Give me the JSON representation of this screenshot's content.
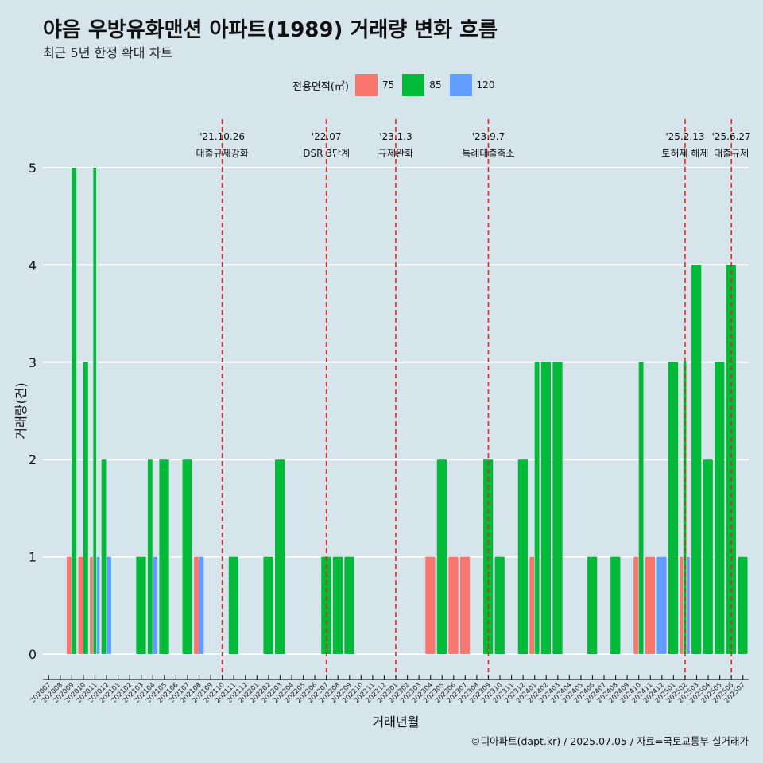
{
  "title": "야음 우방유화맨션 아파트(1989) 거래량 변화 흐름",
  "subtitle": "최근 5년 한정 확대 차트",
  "caption": "©디아파트(dapt.kr) / 2025.07.05 / 자료=국토교통부 실거래가",
  "colors": {
    "background": "#d6e4ec",
    "vline": "#e8261c",
    "grid": "#ffffff",
    "axis": "#222222"
  },
  "chart_data": {
    "type": "bar",
    "xlabel": "거래년월",
    "ylabel": "거래량(건)",
    "ylim": [
      0,
      5
    ],
    "yticks": [
      0,
      1,
      2,
      3,
      4,
      5
    ],
    "grid": true,
    "legend_position": "top",
    "legend": {
      "title": "전용면적(㎡)",
      "entries": [
        {
          "name": "75",
          "color": "#f8766d"
        },
        {
          "name": "85",
          "color": "#00ba38"
        },
        {
          "name": "120",
          "color": "#619cff"
        }
      ]
    },
    "categories": [
      "202007",
      "202008",
      "202009",
      "202010",
      "202011",
      "202012",
      "202101",
      "202102",
      "202103",
      "202104",
      "202105",
      "202106",
      "202107",
      "202108",
      "202109",
      "202110",
      "202111",
      "202112",
      "202201",
      "202202",
      "202203",
      "202204",
      "202205",
      "202206",
      "202207",
      "202208",
      "202209",
      "202210",
      "202211",
      "202212",
      "202301",
      "202302",
      "202303",
      "202304",
      "202305",
      "202306",
      "202307",
      "202308",
      "202309",
      "202310",
      "202311",
      "202312",
      "202401",
      "202402",
      "202403",
      "202404",
      "202405",
      "202406",
      "202407",
      "202408",
      "202409",
      "202410",
      "202411",
      "202412",
      "202501",
      "202502",
      "202503",
      "202504",
      "202505",
      "202506",
      "202507"
    ],
    "series": [
      {
        "name": "75",
        "values": [
          0,
          0,
          1,
          1,
          1,
          0,
          0,
          0,
          0,
          0,
          0,
          0,
          0,
          1,
          0,
          0,
          0,
          0,
          0,
          0,
          0,
          0,
          0,
          0,
          0,
          0,
          0,
          0,
          0,
          0,
          0,
          0,
          0,
          1,
          0,
          1,
          1,
          0,
          0,
          0,
          0,
          0,
          1,
          0,
          0,
          0,
          0,
          0,
          0,
          0,
          0,
          1,
          1,
          0,
          0,
          1,
          0,
          0,
          0,
          0,
          0
        ]
      },
      {
        "name": "85",
        "values": [
          0,
          0,
          5,
          3,
          5,
          2,
          0,
          0,
          1,
          2,
          2,
          0,
          2,
          0,
          0,
          0,
          1,
          0,
          0,
          1,
          2,
          0,
          0,
          0,
          1,
          1,
          1,
          0,
          0,
          0,
          0,
          0,
          0,
          0,
          2,
          0,
          0,
          0,
          2,
          1,
          0,
          2,
          3,
          3,
          3,
          0,
          0,
          1,
          0,
          1,
          0,
          3,
          0,
          0,
          3,
          3,
          4,
          2,
          3,
          4,
          1
        ]
      },
      {
        "name": "120",
        "values": [
          0,
          0,
          0,
          0,
          1,
          1,
          0,
          0,
          0,
          1,
          0,
          0,
          0,
          1,
          0,
          0,
          0,
          0,
          0,
          0,
          0,
          0,
          0,
          0,
          0,
          0,
          0,
          0,
          0,
          0,
          0,
          0,
          0,
          0,
          0,
          0,
          0,
          0,
          0,
          0,
          0,
          0,
          0,
          0,
          0,
          0,
          0,
          0,
          0,
          0,
          0,
          0,
          0,
          1,
          0,
          1,
          0,
          0,
          0,
          0,
          0
        ]
      }
    ],
    "annotations": [
      {
        "at": "202110",
        "date": "'21.10.26",
        "label": "대출규제강화"
      },
      {
        "at": "202207",
        "date": "'22.07",
        "label": "DSR 3단계"
      },
      {
        "at": "202301",
        "date": "'23.1.3",
        "label": "규제완화"
      },
      {
        "at": "202309",
        "date": "'23.9.7",
        "label": "특례대출축소"
      },
      {
        "at": "202502",
        "date": "'25.2.13",
        "label": "토허제 해제"
      },
      {
        "at": "202506",
        "date": "'25.6.27",
        "label": "대출규제"
      }
    ]
  }
}
